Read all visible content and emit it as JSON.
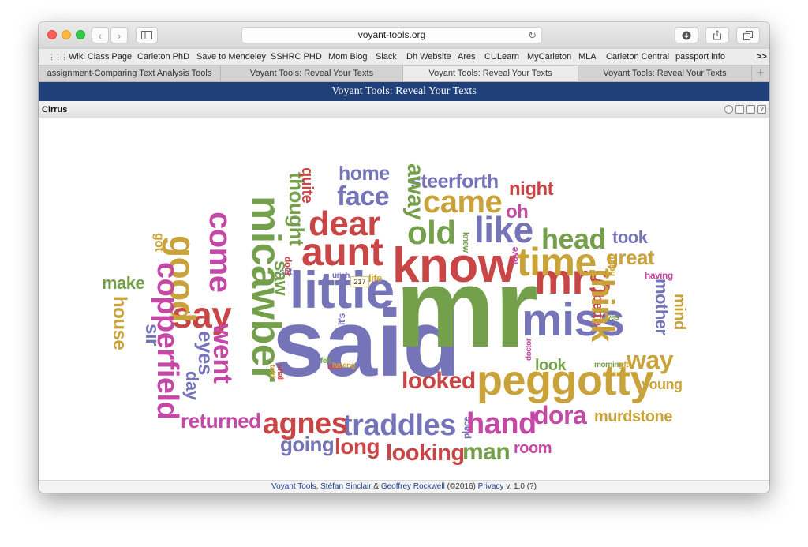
{
  "browser": {
    "url": "voyant-tools.org",
    "bookmarks": [
      "Wiki Class Page",
      "Carleton PhD",
      "Save to Mendeley",
      "SSHRC PHD",
      "Mom Blog",
      "Slack",
      "Dh Website",
      "Ares",
      "CULearn",
      "MyCarleton",
      "MLA",
      "Carleton Central",
      "passport info"
    ],
    "bookmarks_overflow": ">>",
    "tabs": [
      "assignment-Comparing Text Analysis Tools",
      "Voyant Tools: Reveal Your Texts",
      "Voyant Tools: Reveal Your Texts",
      "Voyant Tools: Reveal Your Texts"
    ],
    "active_tab": 2,
    "new_tab_label": "+"
  },
  "app": {
    "header_title": "Voyant Tools: Reveal Your Texts",
    "panel_title": "Cirrus",
    "tooltip_value": "217"
  },
  "footer": {
    "tools": "Voyant Tools",
    "comma": ",",
    "author1": "Stéfan Sinclair",
    "amp": "&",
    "author2": "Geoffrey Rockwell",
    "year": "(©2016)",
    "privacy": "Privacy",
    "version": "v. 1.0 (?)"
  },
  "colors": {
    "purple": "#7674b8",
    "green": "#75a04b",
    "red": "#c94646",
    "gold": "#c9a33a",
    "magenta": "#c548a6",
    "header_blue": "#1f4079"
  },
  "cirrus": {
    "words": [
      "said",
      "mr",
      "micawber",
      "little",
      "know",
      "aunt",
      "peggotty",
      "miss",
      "mrs",
      "time",
      "like",
      "copperfield",
      "come",
      "dear",
      "old",
      "say",
      "head",
      "came",
      "think",
      "good",
      "hand",
      "face",
      "away",
      "traddles",
      "agnes",
      "thought",
      "went",
      "dora",
      "way",
      "looked",
      "looking",
      "man",
      "long",
      "going",
      "returned",
      "steerforth",
      "home",
      "mother",
      "eyes",
      "quite",
      "night",
      "oh",
      "took",
      "great",
      "saw",
      "house",
      "sir",
      "make",
      "day",
      "murdstone",
      "young",
      "room",
      "mind",
      "look",
      "better",
      "sat",
      "door",
      "life",
      "got",
      "uriah",
      "love",
      "knew",
      "heart",
      "yes",
      "it's",
      "felt",
      "dick",
      "having",
      "told",
      "shall",
      "morning",
      "left",
      "doctor",
      "place"
    ]
  }
}
